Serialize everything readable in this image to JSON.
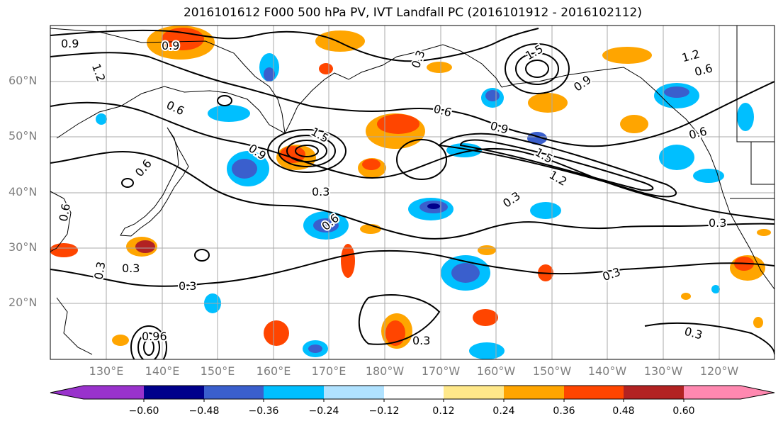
{
  "title": "2016101612 F000 500 hPa PV, IVT Landfall PC (2016101912 - 2016102112)",
  "latitude_labels": [
    "60°N",
    "50°N",
    "40°N",
    "30°N",
    "20°N"
  ],
  "longitude_labels": [
    "130°E",
    "140°E",
    "150°E",
    "160°E",
    "170°E",
    "180°W",
    "170°W",
    "160°W",
    "150°W",
    "140°W",
    "130°W",
    "120°W"
  ],
  "colorbar": {
    "tick_labels": [
      "−0.60",
      "−0.48",
      "−0.36",
      "−0.24",
      "−0.12",
      "0.12",
      "0.24",
      "0.36",
      "0.48",
      "0.60"
    ],
    "colors": [
      "#9932cc",
      "#00008b",
      "#3a5fcd",
      "#00bfff",
      "#b0e2ff",
      "#ffffff",
      "#ffe88a",
      "#ffa500",
      "#ff4500",
      "#b22222",
      "#ff88b0"
    ]
  },
  "contour_labels": [
    "0.9",
    "1.2",
    "0.6",
    "0.9",
    "0.3",
    "0.9",
    "0.6",
    "1.5",
    "0.9",
    "1.2",
    "0.6",
    "0.6",
    "0.6",
    "0.9",
    "1.5",
    "1.2",
    "0.3",
    "0.3",
    "0.6",
    "0.3",
    "0.3",
    "0.3",
    "0.3",
    "0.3",
    "0.3",
    "0.96",
    "0.3",
    "0.6",
    "0.3",
    "0.3",
    "1.5"
  ]
}
